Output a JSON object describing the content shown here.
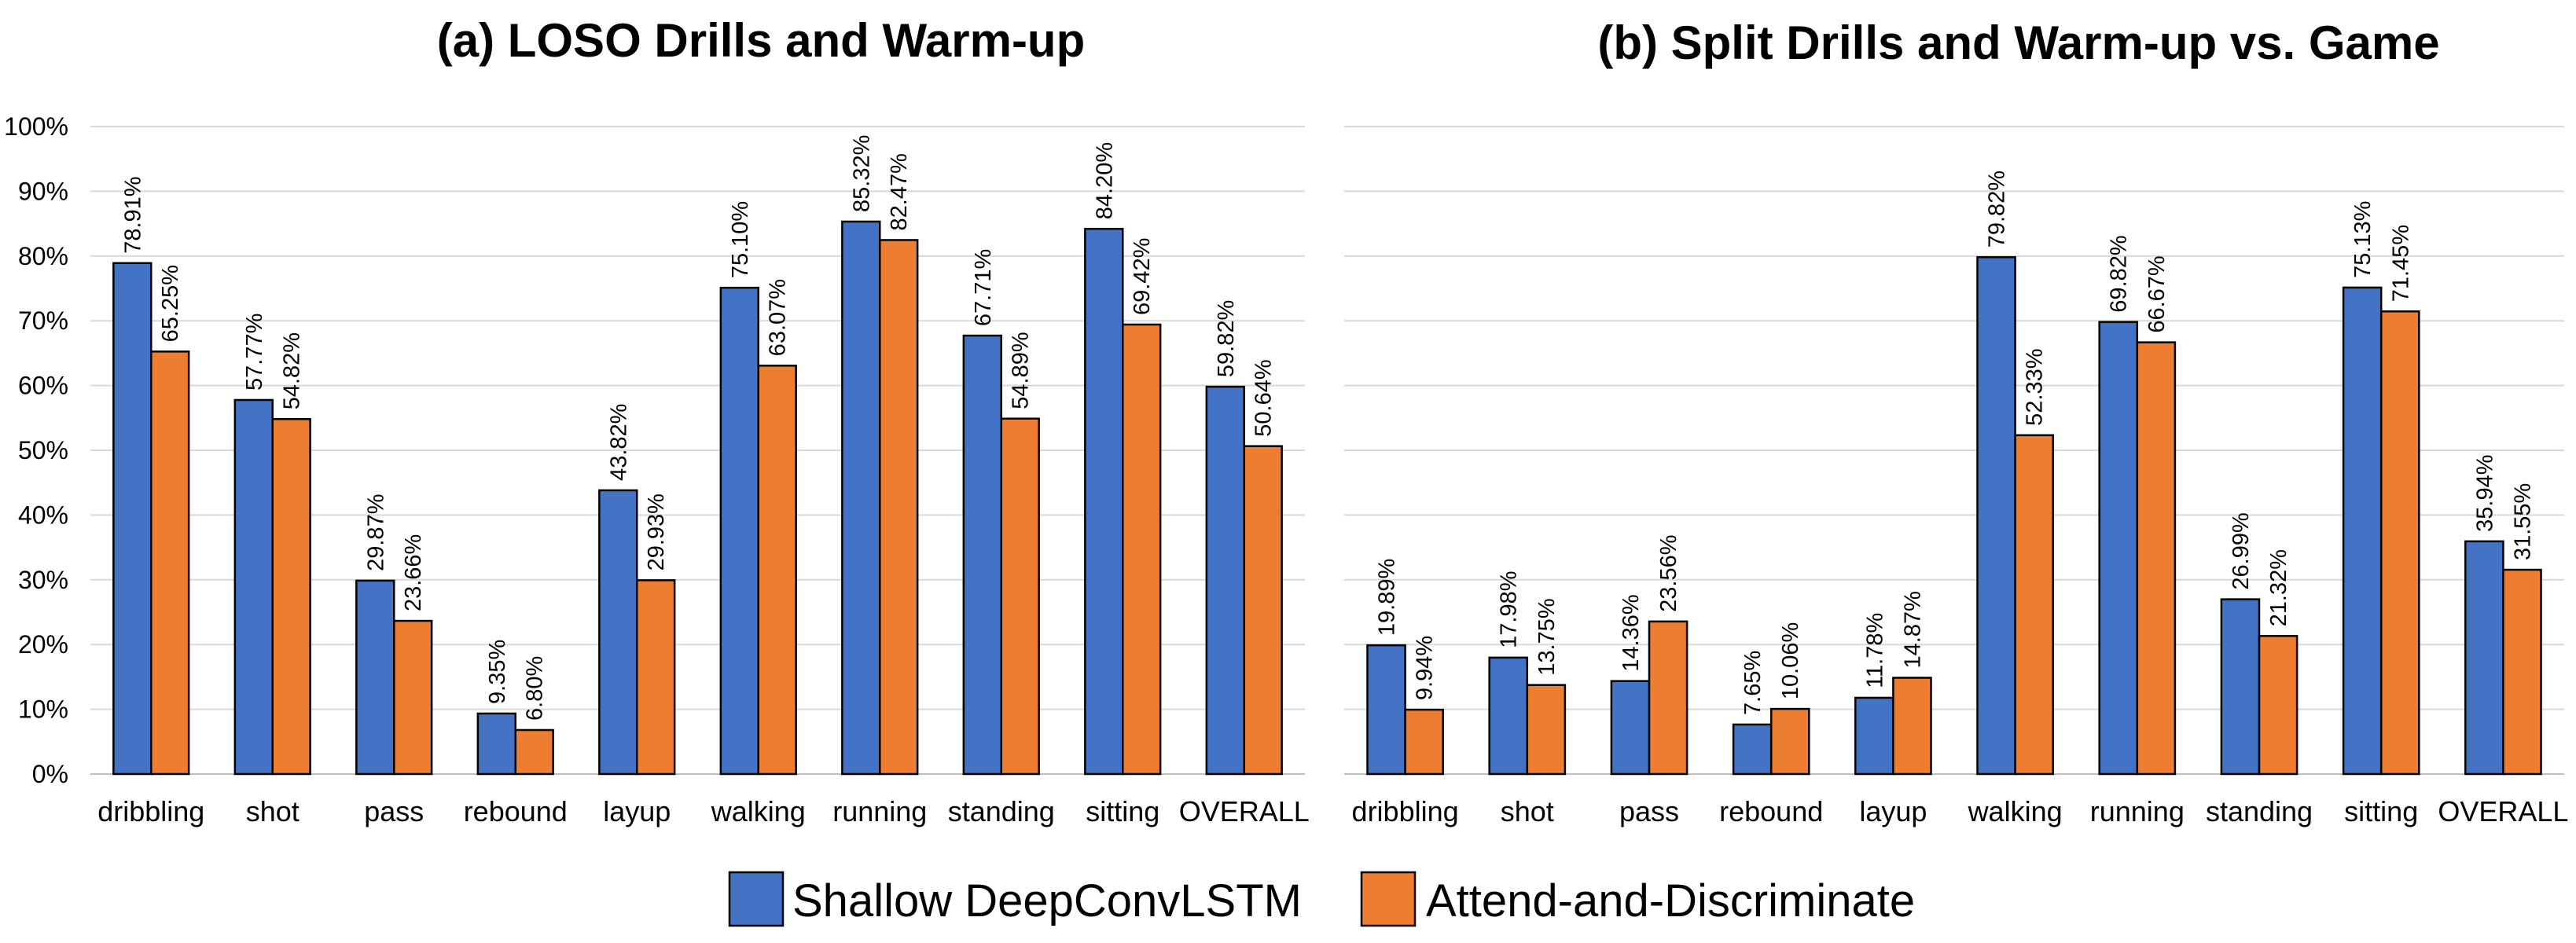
{
  "colors": {
    "series_a": "#4472C4",
    "series_b": "#ED7D31"
  },
  "legend": [
    {
      "name": "Shallow DeepConvLSTM",
      "color": "#4472C4"
    },
    {
      "name": "Attend-and-Discriminate",
      "color": "#ED7D31"
    }
  ],
  "chart_data": [
    {
      "type": "bar",
      "title": "(a) LOSO Drills and Warm-up",
      "xlabel": "",
      "ylabel": "",
      "ylim": [
        0,
        100
      ],
      "yticks": [
        "0%",
        "10%",
        "20%",
        "30%",
        "40%",
        "50%",
        "60%",
        "70%",
        "80%",
        "90%",
        "100%"
      ],
      "grid": true,
      "categories": [
        "dribbling",
        "shot",
        "pass",
        "rebound",
        "layup",
        "walking",
        "running",
        "standing",
        "sitting",
        "OVERALL"
      ],
      "series": [
        {
          "name": "Shallow DeepConvLSTM",
          "values": [
            78.91,
            57.77,
            29.87,
            9.35,
            43.82,
            75.1,
            85.32,
            67.71,
            84.2,
            59.82
          ],
          "labels": [
            "78.91%",
            "57.77%",
            "29.87%",
            "9.35%",
            "43.82%",
            "75.10%",
            "85.32%",
            "67.71%",
            "84.20%",
            "59.82%"
          ]
        },
        {
          "name": "Attend-and-Discriminate",
          "values": [
            65.25,
            54.82,
            23.66,
            6.8,
            29.93,
            63.07,
            82.47,
            54.89,
            69.42,
            50.64
          ],
          "labels": [
            "65.25%",
            "54.82%",
            "23.66%",
            "6.80%",
            "29.93%",
            "63.07%",
            "82.47%",
            "54.89%",
            "69.42%",
            "50.64%"
          ]
        }
      ]
    },
    {
      "type": "bar",
      "title": "(b) Split Drills and Warm-up vs. Game",
      "xlabel": "",
      "ylabel": "",
      "ylim": [
        0,
        100
      ],
      "grid": true,
      "categories": [
        "dribbling",
        "shot",
        "pass",
        "rebound",
        "layup",
        "walking",
        "running",
        "standing",
        "sitting",
        "OVERALL"
      ],
      "series": [
        {
          "name": "Shallow DeepConvLSTM",
          "values": [
            19.89,
            17.98,
            14.36,
            7.65,
            11.78,
            79.82,
            69.82,
            26.99,
            75.13,
            35.94
          ],
          "labels": [
            "19.89%",
            "17.98%",
            "14.36%",
            "7.65%",
            "11.78%",
            "79.82%",
            "69.82%",
            "26.99%",
            "75.13%",
            "35.94%"
          ]
        },
        {
          "name": "Attend-and-Discriminate",
          "values": [
            9.94,
            13.75,
            23.56,
            10.06,
            14.87,
            52.33,
            66.67,
            21.32,
            71.45,
            31.55
          ],
          "labels": [
            "9.94%",
            "13.75%",
            "23.56%",
            "10.06%",
            "14.87%",
            "52.33%",
            "66.67%",
            "21.32%",
            "71.45%",
            "31.55%"
          ]
        }
      ]
    }
  ]
}
